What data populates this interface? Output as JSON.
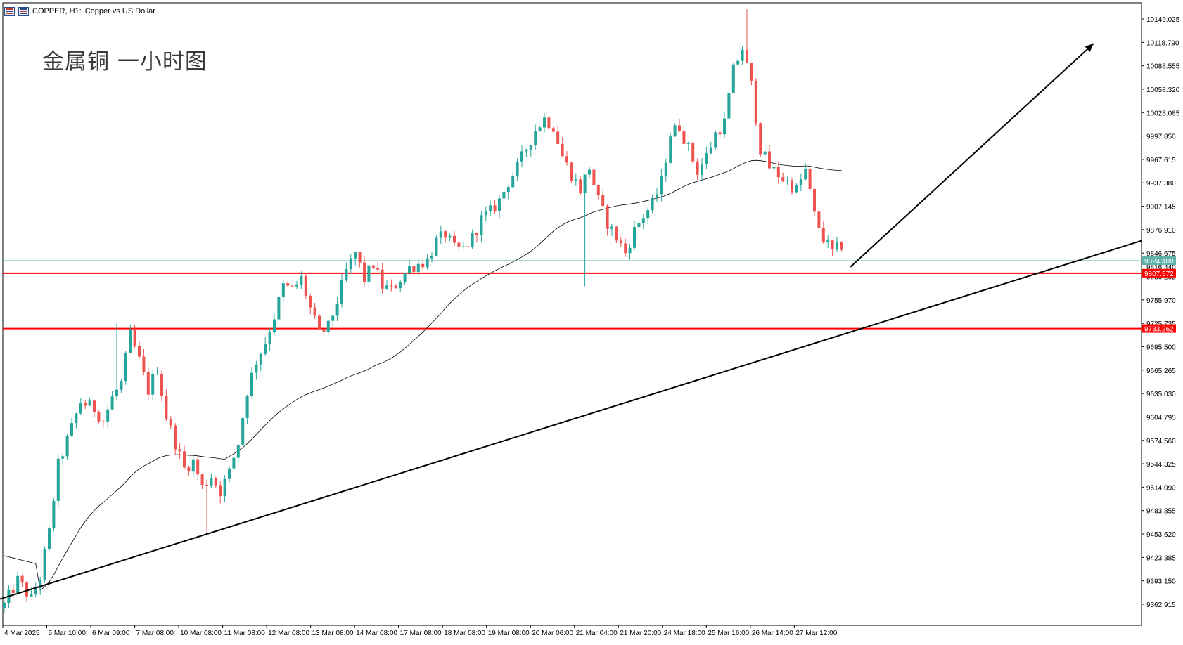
{
  "header": {
    "symbol_label": "COPPER, H1:",
    "description": "Copper vs US Dollar",
    "icons": [
      "chart-list-icon",
      "chart-window-icon"
    ]
  },
  "caption": "金属铜 一小时图",
  "price_scale": {
    "labels": [
      "10149.025",
      "10118.790",
      "10088.555",
      "10058.320",
      "10028.085",
      "9997.850",
      "9967.615",
      "9937.380",
      "9907.145",
      "9876.910",
      "9846.675",
      "9786.205",
      "9755.970",
      "9725.735",
      "9695.500",
      "9665.265",
      "9635.030",
      "9604.795",
      "9574.560",
      "9544.325",
      "9514.090",
      "9483.855",
      "9453.620",
      "9423.385",
      "9393.150",
      "9362.915"
    ],
    "current_price_tag": "9824.400",
    "hidden_label": "9816.440",
    "level_tags": [
      "9807.572",
      "9733.262"
    ]
  },
  "time_scale": {
    "labels": [
      "4 Mar 2025",
      "5 Mar 10:00",
      "6 Mar 09:00",
      "7 Mar 08:00",
      "10 Mar 08:00",
      "11 Mar 08:00",
      "12 Mar 08:00",
      "13 Mar 08:00",
      "14 Mar 08:00",
      "17 Mar 08:00",
      "18 Mar 08:00",
      "19 Mar 08:00",
      "20 Mar 06:00",
      "21 Mar 04:00",
      "21 Mar 20:00",
      "24 Mar 18:00",
      "25 Mar 16:00",
      "26 Mar 14:00",
      "27 Mar 12:00"
    ]
  },
  "chart_data": {
    "type": "candlestick",
    "symbol": "COPPER",
    "timeframe": "H1",
    "ylim": [
      9335,
      10165
    ],
    "horizontal_levels": [
      {
        "value": 9807.572,
        "color": "#ff0000"
      },
      {
        "value": 9733.262,
        "color": "#ff0000"
      }
    ],
    "bid_line": {
      "value": 9824.4,
      "color": "#5fb3a9"
    },
    "trendline": {
      "from": {
        "bar": 0,
        "value": 9370
      },
      "to": {
        "bar": 252,
        "value": 9850
      }
    },
    "arrow": {
      "from": {
        "bar": 188,
        "value": 9816
      },
      "to": {
        "bar": 242,
        "value": 10116
      }
    },
    "moving_average_color": "#000000",
    "bull_color": "#26a69a",
    "bear_color": "#ef5350",
    "anchors": [
      [
        0,
        9362
      ],
      [
        3,
        9395
      ],
      [
        6,
        9370
      ],
      [
        8,
        9400
      ],
      [
        10,
        9460
      ],
      [
        12,
        9550
      ],
      [
        15,
        9600
      ],
      [
        17,
        9635
      ],
      [
        20,
        9625
      ],
      [
        22,
        9610
      ],
      [
        24,
        9640
      ],
      [
        26,
        9660
      ],
      [
        28,
        9725
      ],
      [
        30,
        9690
      ],
      [
        32,
        9650
      ],
      [
        34,
        9680
      ],
      [
        36,
        9615
      ],
      [
        38,
        9580
      ],
      [
        40,
        9545
      ],
      [
        42,
        9555
      ],
      [
        44,
        9520
      ],
      [
        46,
        9535
      ],
      [
        48,
        9515
      ],
      [
        50,
        9540
      ],
      [
        52,
        9580
      ],
      [
        54,
        9650
      ],
      [
        56,
        9690
      ],
      [
        58,
        9715
      ],
      [
        60,
        9750
      ],
      [
        62,
        9790
      ],
      [
        64,
        9785
      ],
      [
        66,
        9800
      ],
      [
        68,
        9760
      ],
      [
        70,
        9725
      ],
      [
        72,
        9735
      ],
      [
        74,
        9770
      ],
      [
        76,
        9810
      ],
      [
        78,
        9835
      ],
      [
        80,
        9800
      ],
      [
        82,
        9820
      ],
      [
        84,
        9790
      ],
      [
        86,
        9785
      ],
      [
        88,
        9800
      ],
      [
        90,
        9815
      ],
      [
        92,
        9820
      ],
      [
        94,
        9825
      ],
      [
        96,
        9850
      ],
      [
        98,
        9860
      ],
      [
        100,
        9840
      ],
      [
        102,
        9840
      ],
      [
        104,
        9855
      ],
      [
        106,
        9880
      ],
      [
        108,
        9890
      ],
      [
        110,
        9905
      ],
      [
        112,
        9930
      ],
      [
        114,
        9950
      ],
      [
        116,
        9975
      ],
      [
        118,
        10000
      ],
      [
        120,
        10015
      ],
      [
        122,
        10005
      ],
      [
        124,
        9965
      ],
      [
        126,
        9940
      ],
      [
        128,
        9920
      ],
      [
        130,
        9950
      ],
      [
        132,
        9905
      ],
      [
        134,
        9875
      ],
      [
        136,
        9855
      ],
      [
        138,
        9835
      ],
      [
        140,
        9865
      ],
      [
        142,
        9885
      ],
      [
        144,
        9900
      ],
      [
        146,
        9930
      ],
      [
        148,
        9995
      ],
      [
        150,
        10005
      ],
      [
        152,
        9975
      ],
      [
        154,
        9945
      ],
      [
        156,
        9965
      ],
      [
        158,
        9995
      ],
      [
        160,
        10010
      ],
      [
        162,
        10080
      ],
      [
        164,
        10110
      ],
      [
        166,
        10060
      ],
      [
        168,
        9975
      ],
      [
        170,
        9950
      ],
      [
        172,
        9940
      ],
      [
        174,
        9930
      ],
      [
        176,
        9920
      ],
      [
        178,
        9945
      ],
      [
        180,
        9885
      ],
      [
        182,
        9855
      ],
      [
        184,
        9835
      ],
      [
        186,
        9845
      ]
    ]
  }
}
